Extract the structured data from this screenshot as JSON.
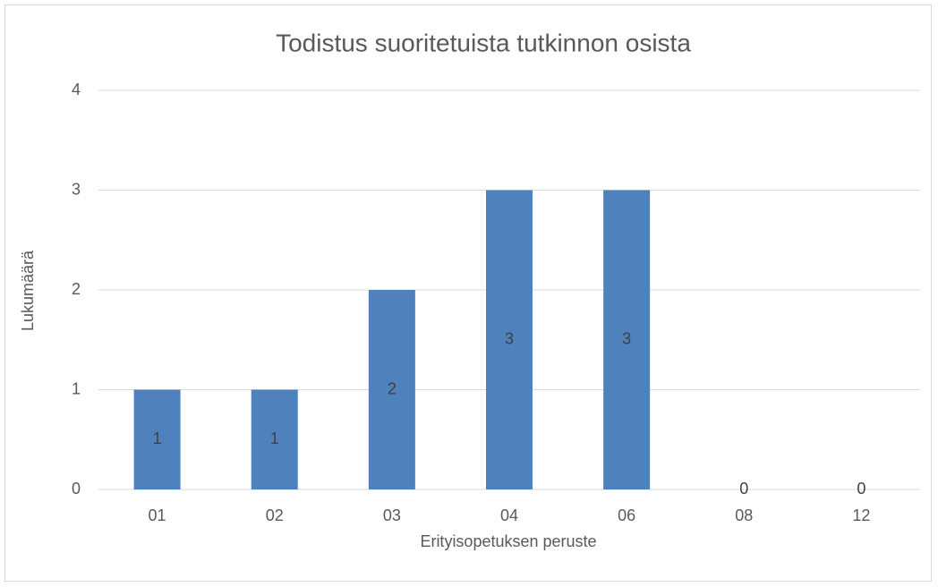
{
  "chart_data": {
    "type": "bar",
    "title": "Todistus suoritetuista tutkinnon osista",
    "x_label": "Erityisopetuksen peruste",
    "y_label": "Lukumäärä",
    "categories": [
      "01",
      "02",
      "03",
      "04",
      "06",
      "08",
      "12"
    ],
    "values": [
      1,
      1,
      2,
      3,
      3,
      0,
      0
    ],
    "color": "#4f81bd",
    "ylim": [
      0,
      4
    ],
    "yticks": [
      0,
      1,
      2,
      3,
      4
    ],
    "grid": true,
    "data_labels": true
  }
}
